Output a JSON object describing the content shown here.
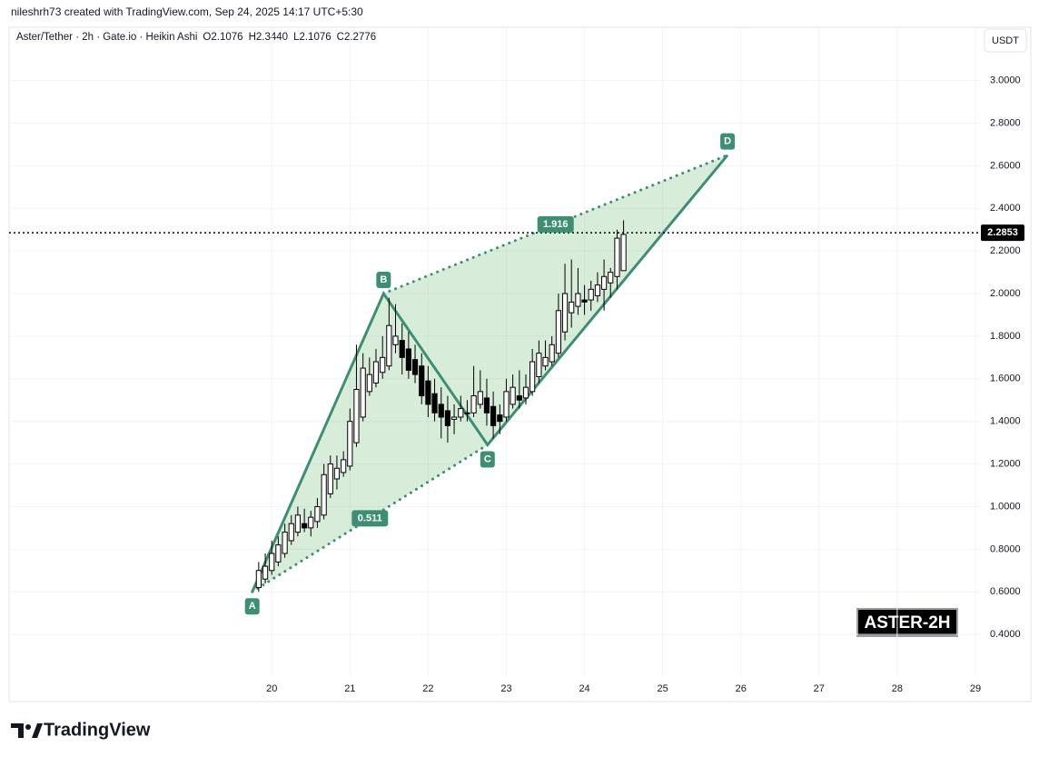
{
  "header": {
    "credit": "nileshrh73 created with TradingView.com, Sep 24, 2025 14:17 UTC+5:30",
    "symbol_info": "Aster/Tether · 2h · Gate.io · Heikin Ashi",
    "ohlc": [
      {
        "key": "O",
        "value": 2.1076,
        "label": "2.1076"
      },
      {
        "key": "H",
        "value": 2.344,
        "label": "2.3440"
      },
      {
        "key": "L",
        "value": 2.1076,
        "label": "2.1076"
      },
      {
        "key": "C",
        "value": 2.2776,
        "label": "2.2776"
      }
    ],
    "currency": "USDT"
  },
  "brand": "TradingView",
  "watermark": "ASTER-2H",
  "chart_data": {
    "type": "candlestick",
    "x": [
      19.833,
      19.917,
      20,
      20.083,
      20.167,
      20.25,
      20.333,
      20.417,
      20.5,
      20.583,
      20.667,
      20.75,
      20.833,
      20.917,
      21,
      21.083,
      21.167,
      21.25,
      21.333,
      21.417,
      21.5,
      21.583,
      21.667,
      21.75,
      21.833,
      21.917,
      22,
      22.083,
      22.167,
      22.25,
      22.333,
      22.417,
      22.5,
      22.583,
      22.667,
      22.75,
      22.833,
      22.917,
      23,
      23.083,
      23.167,
      23.25,
      23.333,
      23.417,
      23.5,
      23.583,
      23.667,
      23.75,
      23.833,
      23.917,
      24,
      24.083,
      24.167,
      24.25,
      24.333,
      24.417,
      24.5
    ],
    "open": [
      0.62,
      0.66,
      0.7,
      0.74,
      0.78,
      0.84,
      0.88,
      0.92,
      0.9,
      0.93,
      0.96,
      1.06,
      1.13,
      1.16,
      1.19,
      1.3,
      1.42,
      1.54,
      1.58,
      1.63,
      1.66,
      1.76,
      1.78,
      1.74,
      1.69,
      1.66,
      1.59,
      1.53,
      1.48,
      1.45,
      1.41,
      1.42,
      1.44,
      1.44,
      1.48,
      1.51,
      1.47,
      1.43,
      1.42,
      1.48,
      1.52,
      1.51,
      1.54,
      1.61,
      1.66,
      1.68,
      1.72,
      1.82,
      1.91,
      1.94,
      1.97,
      1.97,
      1.99,
      2.02,
      2.05,
      2.08,
      2.1076
    ],
    "high": [
      0.74,
      0.78,
      0.84,
      0.86,
      0.92,
      0.96,
      1.0,
      0.99,
      0.98,
      1.04,
      1.2,
      1.24,
      1.24,
      1.26,
      1.46,
      1.76,
      1.72,
      1.7,
      1.74,
      1.8,
      1.98,
      1.95,
      1.86,
      1.82,
      1.76,
      1.72,
      1.66,
      1.6,
      1.56,
      1.52,
      1.48,
      1.52,
      1.5,
      1.66,
      1.64,
      1.6,
      1.54,
      1.48,
      1.6,
      1.62,
      1.64,
      1.62,
      1.74,
      1.78,
      1.78,
      1.8,
      2.0,
      2.14,
      2.16,
      2.12,
      2.04,
      2.06,
      2.1,
      2.16,
      2.12,
      2.3,
      2.344
    ],
    "low": [
      0.6,
      0.64,
      0.68,
      0.72,
      0.76,
      0.82,
      0.86,
      0.88,
      0.86,
      0.9,
      0.94,
      1.04,
      1.08,
      1.14,
      1.17,
      1.28,
      1.4,
      1.52,
      1.56,
      1.6,
      1.64,
      1.72,
      1.62,
      1.6,
      1.58,
      1.48,
      1.42,
      1.4,
      1.32,
      1.3,
      1.34,
      1.4,
      1.4,
      1.42,
      1.46,
      1.38,
      1.32,
      1.34,
      1.4,
      1.46,
      1.46,
      1.48,
      1.52,
      1.58,
      1.64,
      1.66,
      1.7,
      1.78,
      1.84,
      1.9,
      1.9,
      1.92,
      1.96,
      1.92,
      1.98,
      2.02,
      2.1076
    ],
    "close": [
      0.7,
      0.72,
      0.78,
      0.82,
      0.88,
      0.92,
      0.96,
      0.9,
      0.95,
      1.0,
      1.15,
      1.2,
      1.18,
      1.22,
      1.4,
      1.55,
      1.65,
      1.62,
      1.68,
      1.7,
      1.85,
      1.8,
      1.7,
      1.64,
      1.62,
      1.52,
      1.48,
      1.44,
      1.42,
      1.38,
      1.42,
      1.46,
      1.44,
      1.52,
      1.54,
      1.44,
      1.38,
      1.4,
      1.54,
      1.56,
      1.5,
      1.56,
      1.68,
      1.72,
      1.7,
      1.76,
      1.92,
      2.0,
      1.96,
      2.0,
      1.96,
      2.02,
      2.04,
      2.08,
      2.1,
      2.26,
      2.2776
    ],
    "up_color": "#ffffff",
    "down_color": "#000000",
    "wick_color": "#000000",
    "xlim": [
      16.64,
      29.07
    ],
    "xticks": [
      20,
      21,
      22,
      23,
      24,
      25,
      26,
      27,
      28,
      29
    ],
    "ylim": [
      0.2,
      3.25
    ],
    "yticks": [
      {
        "value": 0.4,
        "label": "0.4000"
      },
      {
        "value": 0.6,
        "label": "0.6000"
      },
      {
        "value": 0.8,
        "label": "0.8000"
      },
      {
        "value": 1.0,
        "label": "1.0000"
      },
      {
        "value": 1.2,
        "label": "1.2000"
      },
      {
        "value": 1.4,
        "label": "1.4000"
      },
      {
        "value": 1.6,
        "label": "1.6000"
      },
      {
        "value": 1.8,
        "label": "1.8000"
      },
      {
        "value": 2.0,
        "label": "2.0000"
      },
      {
        "value": 2.2,
        "label": "2.2000"
      },
      {
        "value": 2.4,
        "label": "2.4000"
      },
      {
        "value": 2.6,
        "label": "2.6000"
      },
      {
        "value": 2.8,
        "label": "2.8000"
      },
      {
        "value": 3.0,
        "label": "3.0000"
      }
    ],
    "grid": true,
    "last_price": {
      "value": 2.2853,
      "label": "2.2853"
    },
    "pattern": {
      "color": "#3d8f73",
      "fill": "#4caf50",
      "points": [
        {
          "label": "A",
          "x": 19.75,
          "y": 0.6
        },
        {
          "label": "B",
          "x": 21.43,
          "y": 2.0
        },
        {
          "label": "C",
          "x": 22.76,
          "y": 1.29
        },
        {
          "label": "D",
          "x": 25.83,
          "y": 2.65
        }
      ],
      "ac_ratio_label": "0.511",
      "bd_ratio_label": "1.916"
    }
  }
}
